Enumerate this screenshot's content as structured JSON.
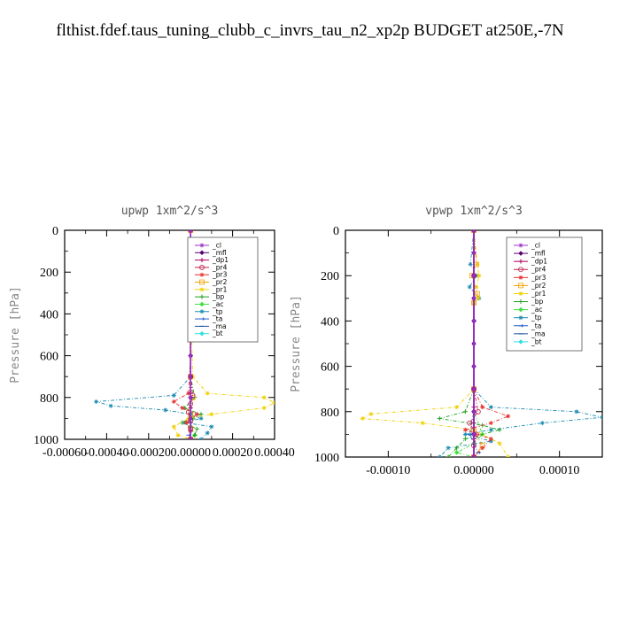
{
  "title": "flthist.fdef.taus_tuning_clubb_c_invrs_tau_n2_xp2p  BUDGET at250E,-7N",
  "chart_data": [
    {
      "type": "line",
      "title": "upwp   1xm^2/s^3",
      "ylabel": "Pressure [hPa]",
      "xlim": [
        -0.0006,
        0.0004
      ],
      "ylim": [
        1000,
        0
      ],
      "xticks": [
        "-0.00060",
        "-0.00040",
        "-0.00020",
        "0.00000",
        "0.00020",
        "0.00040"
      ],
      "yticks": [
        "0",
        "200",
        "400",
        "600",
        "800",
        "1000"
      ],
      "legend_position": "top-right",
      "series": [
        {
          "name": "_cl",
          "color": "#9b30c8",
          "x": [
            0,
            0,
            0,
            0,
            0,
            0,
            0,
            0,
            0,
            0,
            0
          ],
          "y": [
            0,
            100,
            200,
            300,
            400,
            500,
            600,
            700,
            800,
            900,
            1000
          ]
        },
        {
          "name": "_mfl",
          "color": "#5a006e",
          "x": [
            0,
            0,
            0,
            0,
            0,
            0,
            0,
            0,
            0,
            0,
            0
          ],
          "y": [
            0,
            100,
            200,
            300,
            400,
            500,
            600,
            700,
            800,
            900,
            1000
          ]
        },
        {
          "name": "_dp1",
          "color": "#b0005a",
          "x": [
            0,
            0,
            0,
            0,
            0,
            0,
            0,
            0,
            0,
            0,
            0,
            0
          ],
          "y": [
            0,
            100,
            200,
            300,
            400,
            500,
            600,
            700,
            780,
            850,
            920,
            1000
          ]
        },
        {
          "name": "_pr4",
          "color": "#c0204a",
          "x": [
            0,
            0,
            0,
            0,
            1e-05,
            0,
            -1e-05,
            0,
            0,
            0
          ],
          "y": [
            0,
            200,
            400,
            700,
            790,
            830,
            870,
            910,
            950,
            1000
          ]
        },
        {
          "name": "_pr3",
          "color": "#e83030",
          "x": [
            0,
            0,
            0,
            -1e-05,
            -8e-05,
            -4e-05,
            3e-05,
            -2e-05,
            0,
            0
          ],
          "y": [
            0,
            200,
            600,
            780,
            820,
            850,
            880,
            920,
            960,
            1000
          ]
        },
        {
          "name": "_pr2",
          "color": "#f0a000",
          "x": [
            0,
            0,
            3e-06,
            0,
            0,
            1e-05,
            0,
            0,
            0
          ],
          "y": [
            0,
            200,
            250,
            400,
            700,
            800,
            880,
            950,
            1000
          ]
        },
        {
          "name": "_pr1",
          "color": "#f0d000",
          "x": [
            0,
            0,
            5e-06,
            0,
            1e-05,
            8e-05,
            0.00035,
            0.0004,
            0.00035,
            0.0001,
            -1e-05,
            -8e-05,
            -6e-05,
            0
          ],
          "y": [
            0,
            200,
            250,
            300,
            700,
            780,
            800,
            825,
            850,
            880,
            900,
            940,
            980,
            1000
          ]
        },
        {
          "name": "_bp",
          "color": "#20a020",
          "x": [
            0,
            0,
            0,
            2e-05,
            -3e-05,
            5e-05,
            -4e-05,
            3e-05,
            2e-05,
            0
          ],
          "y": [
            0,
            400,
            700,
            800,
            850,
            880,
            920,
            950,
            980,
            1000
          ]
        },
        {
          "name": "_ac",
          "color": "#40e040",
          "x": [
            0,
            0,
            0,
            1e-05,
            0,
            2e-05,
            0
          ],
          "y": [
            0,
            400,
            800,
            900,
            940,
            980,
            1000
          ]
        },
        {
          "name": "_tp",
          "color": "#1a8ab0",
          "x": [
            0,
            0,
            0,
            -8e-05,
            -0.00045,
            -0.00038,
            -0.00012,
            0,
            5e-05,
            -3e-05,
            0.0001,
            8e-05,
            5e-05
          ],
          "y": [
            0,
            400,
            700,
            790,
            820,
            840,
            860,
            880,
            900,
            920,
            940,
            970,
            1000
          ]
        },
        {
          "name": "_ta",
          "color": "#2060d0",
          "x": [
            0,
            0,
            0,
            1e-05,
            0,
            -1e-05,
            0
          ],
          "y": [
            0,
            400,
            800,
            900,
            940,
            980,
            1000
          ]
        },
        {
          "name": "_ma",
          "color": "#2050a0",
          "x": [
            0,
            0,
            0,
            0,
            0,
            0
          ],
          "y": [
            0,
            200,
            400,
            600,
            800,
            1000
          ]
        },
        {
          "name": "_bt",
          "color": "#30e0e0",
          "x": [
            0,
            0,
            0,
            0,
            0,
            0
          ],
          "y": [
            0,
            200,
            400,
            600,
            800,
            1000
          ]
        }
      ]
    },
    {
      "type": "line",
      "title": "vpwp   1xm^2/s^3",
      "ylabel": "Pressure [hPa]",
      "xlim": [
        -0.00015,
        0.00015
      ],
      "ylim": [
        1000,
        0
      ],
      "xticks": [
        "-0.00010",
        "0.00000",
        "0.00010"
      ],
      "yticks": [
        "0",
        "200",
        "400",
        "600",
        "800",
        "1000"
      ],
      "legend_position": "top-right",
      "series": [
        {
          "name": "_cl",
          "color": "#9b30c8",
          "x": [
            0,
            0,
            0,
            0,
            0,
            0,
            0,
            0,
            0,
            0,
            0
          ],
          "y": [
            0,
            100,
            200,
            300,
            400,
            500,
            600,
            700,
            800,
            900,
            1000
          ]
        },
        {
          "name": "_mfl",
          "color": "#5a006e",
          "x": [
            0,
            0,
            0,
            0,
            0,
            0,
            0,
            0,
            0,
            0,
            0
          ],
          "y": [
            0,
            100,
            200,
            300,
            400,
            500,
            600,
            700,
            800,
            900,
            1000
          ]
        },
        {
          "name": "_dp1",
          "color": "#b0005a",
          "x": [
            0,
            0,
            0,
            0,
            0,
            0,
            0,
            0,
            0,
            0,
            0,
            0
          ],
          "y": [
            0,
            100,
            200,
            300,
            400,
            500,
            600,
            700,
            780,
            850,
            920,
            1000
          ]
        },
        {
          "name": "_pr4",
          "color": "#c0204a",
          "x": [
            0,
            0,
            0,
            5e-06,
            -5e-06,
            3e-06,
            0,
            0
          ],
          "y": [
            0,
            200,
            700,
            800,
            850,
            900,
            950,
            1000
          ]
        },
        {
          "name": "_pr3",
          "color": "#e83030",
          "x": [
            0,
            0,
            0,
            1e-05,
            4e-05,
            2e-05,
            -1e-05,
            2e-05,
            1e-05,
            0
          ],
          "y": [
            0,
            200,
            700,
            780,
            820,
            850,
            880,
            920,
            960,
            1000
          ]
        },
        {
          "name": "_pr2",
          "color": "#f0a000",
          "x": [
            0,
            3e-06,
            -2e-06,
            4e-06,
            0,
            0,
            0,
            1e-05,
            0
          ],
          "y": [
            0,
            150,
            200,
            280,
            320,
            700,
            880,
            950,
            1000
          ]
        },
        {
          "name": "_pr1",
          "color": "#f0d000",
          "x": [
            0,
            4e-06,
            6e-06,
            3e-06,
            5e-06,
            0,
            0,
            -2e-05,
            -0.00012,
            -0.00013,
            -6e-05,
            0,
            3e-05,
            4e-05
          ],
          "y": [
            0,
            150,
            200,
            250,
            300,
            320,
            700,
            780,
            810,
            830,
            850,
            880,
            940,
            1000
          ]
        },
        {
          "name": "_bp",
          "color": "#20a020",
          "x": [
            0,
            0,
            0,
            -1e-05,
            -4e-05,
            1e-05,
            3e-05,
            -1e-05,
            -2e-05,
            -3e-05
          ],
          "y": [
            0,
            400,
            700,
            800,
            830,
            860,
            880,
            920,
            960,
            1000
          ]
        },
        {
          "name": "_ac",
          "color": "#40e040",
          "x": [
            0,
            0,
            0,
            1e-05,
            0,
            -2e-05,
            0
          ],
          "y": [
            0,
            400,
            800,
            900,
            940,
            980,
            1000
          ]
        },
        {
          "name": "_tp",
          "color": "#1a8ab0",
          "x": [
            0,
            -4e-06,
            3e-06,
            -5e-06,
            6e-06,
            0,
            0,
            2e-05,
            0.00012,
            0.00015,
            8e-05,
            2e-05,
            -1e-05,
            2e-05,
            -3e-05,
            -4e-05
          ],
          "y": [
            0,
            150,
            200,
            250,
            300,
            320,
            700,
            780,
            800,
            825,
            850,
            880,
            900,
            930,
            960,
            1000
          ]
        },
        {
          "name": "_ta",
          "color": "#2060d0",
          "x": [
            0,
            0,
            0,
            -5e-06,
            0,
            5e-06,
            0
          ],
          "y": [
            0,
            400,
            800,
            900,
            940,
            980,
            1000
          ]
        },
        {
          "name": "_ma",
          "color": "#2050a0",
          "x": [
            0,
            0,
            0,
            0,
            0,
            0
          ],
          "y": [
            0,
            200,
            400,
            600,
            800,
            1000
          ]
        },
        {
          "name": "_bt",
          "color": "#30e0e0",
          "x": [
            0,
            0,
            0,
            0,
            0,
            0
          ],
          "y": [
            0,
            200,
            400,
            600,
            800,
            1000
          ]
        }
      ]
    }
  ]
}
